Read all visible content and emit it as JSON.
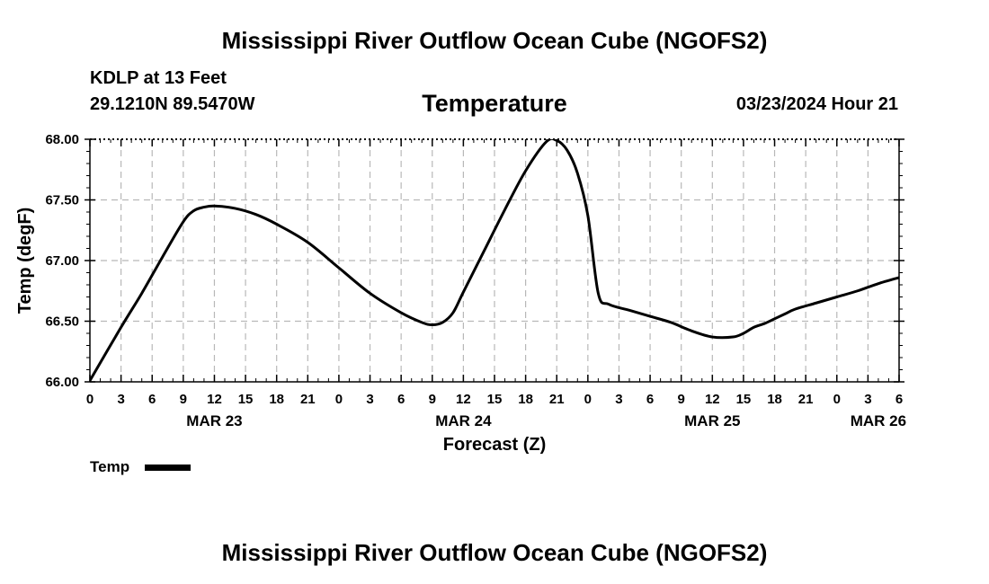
{
  "header": {
    "title": "Mississippi River Outflow Ocean Cube (NGOFS2)",
    "station": "KDLP at 13 Feet",
    "coordinates": "29.1210N  89.5470W",
    "subtitle": "Temperature",
    "datetime": "03/23/2024 Hour 21"
  },
  "footer": {
    "title": "Mississippi River Outflow Ocean Cube (NGOFS2)"
  },
  "chart_data": {
    "type": "line",
    "title": "Temperature",
    "xlabel": "Forecast (Z)",
    "ylabel": "Temp (degF)",
    "ylim": [
      66.0,
      68.0
    ],
    "yticks": [
      "66.00",
      "66.50",
      "67.00",
      "67.50",
      "68.00"
    ],
    "xlim": [
      0,
      78
    ],
    "xticks": [
      "0",
      "3",
      "6",
      "9",
      "12",
      "15",
      "18",
      "21",
      "0",
      "3",
      "6",
      "9",
      "12",
      "15",
      "18",
      "21",
      "0",
      "3",
      "6",
      "9",
      "12",
      "15",
      "18",
      "21",
      "0",
      "3",
      "6"
    ],
    "date_labels": [
      {
        "label": "MAR 23",
        "hour": 12
      },
      {
        "label": "MAR 24",
        "hour": 36
      },
      {
        "label": "MAR 25",
        "hour": 60
      },
      {
        "label": "MAR 26",
        "hour": 76
      }
    ],
    "grid": true,
    "legend": "bottom-left",
    "series": [
      {
        "name": "Temp",
        "color": "#000000",
        "x": [
          0,
          3,
          5,
          7,
          9,
          10,
          11,
          12,
          14,
          16,
          18,
          21,
          24,
          27,
          30,
          32,
          33,
          34,
          35,
          36,
          38,
          40,
          42,
          44,
          45,
          46,
          47,
          48,
          49,
          50,
          52,
          54,
          56,
          58,
          60,
          62,
          63,
          64,
          65,
          66,
          67,
          68,
          70,
          72,
          74,
          76,
          78
        ],
        "values": [
          66.01,
          66.45,
          66.73,
          67.03,
          67.32,
          67.41,
          67.44,
          67.45,
          67.43,
          67.38,
          67.3,
          67.15,
          66.94,
          66.73,
          66.57,
          66.49,
          66.47,
          66.49,
          66.57,
          66.74,
          67.08,
          67.42,
          67.74,
          67.98,
          67.99,
          67.91,
          67.72,
          67.37,
          66.73,
          66.64,
          66.59,
          66.54,
          66.49,
          66.42,
          66.37,
          66.37,
          66.4,
          66.45,
          66.48,
          66.52,
          66.56,
          66.6,
          66.65,
          66.7,
          66.75,
          66.81,
          66.86
        ]
      }
    ]
  }
}
